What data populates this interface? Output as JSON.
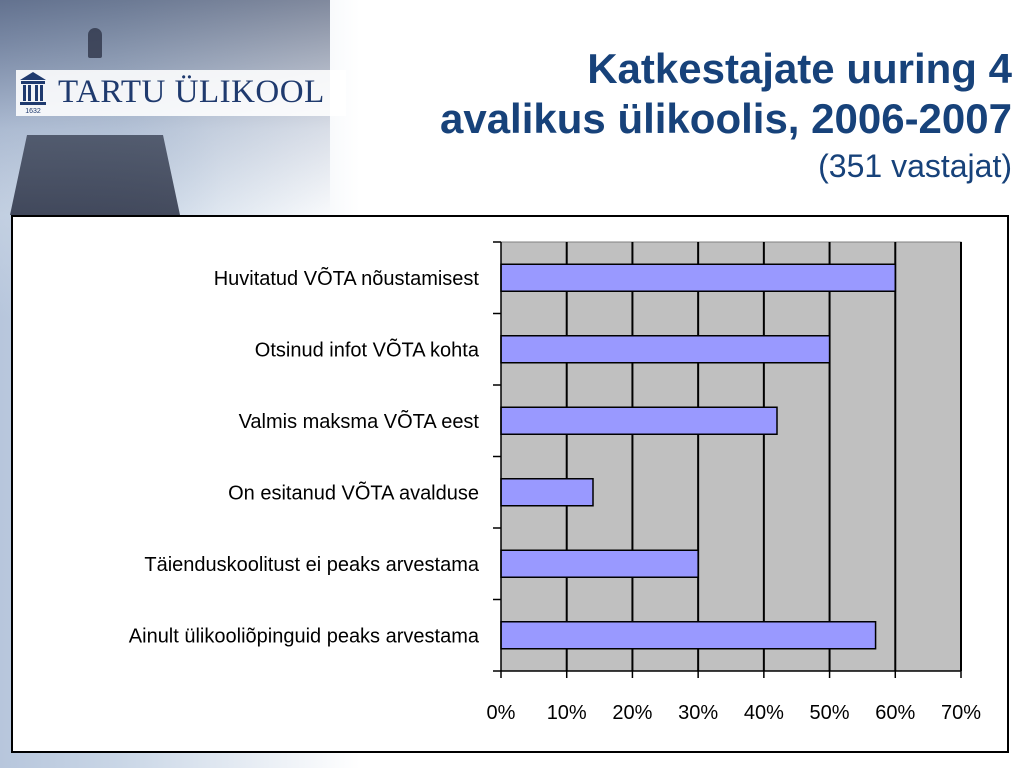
{
  "logo": {
    "text": "TARTU ÜLIKOOL",
    "emblem_text": "1632",
    "color": "#1f3a6e"
  },
  "title": {
    "line1": "Katkestajate uuring 4",
    "line2": "avalikus ülikoolis, 2006-2007",
    "subtitle": "(351 vastajat)",
    "color": "#17427a"
  },
  "chart_data": {
    "type": "bar",
    "orientation": "horizontal",
    "categories": [
      "Huvitatud VÕTA nõustamisest",
      "Otsinud infot VÕTA kohta",
      "Valmis maksma VÕTA eest",
      "On esitanud VÕTA avalduse",
      "Täienduskoolitust ei peaks arvestama",
      "Ainult ülikooliõpinguid peaks arvestama"
    ],
    "values": [
      60,
      50,
      42,
      14,
      30,
      57
    ],
    "xlim": [
      0,
      70
    ],
    "xticks": [
      "0%",
      "10%",
      "20%",
      "30%",
      "40%",
      "50%",
      "60%",
      "70%"
    ],
    "grid": true,
    "bar_color": "#9999ff",
    "plot_background": "#c0c0c0"
  }
}
